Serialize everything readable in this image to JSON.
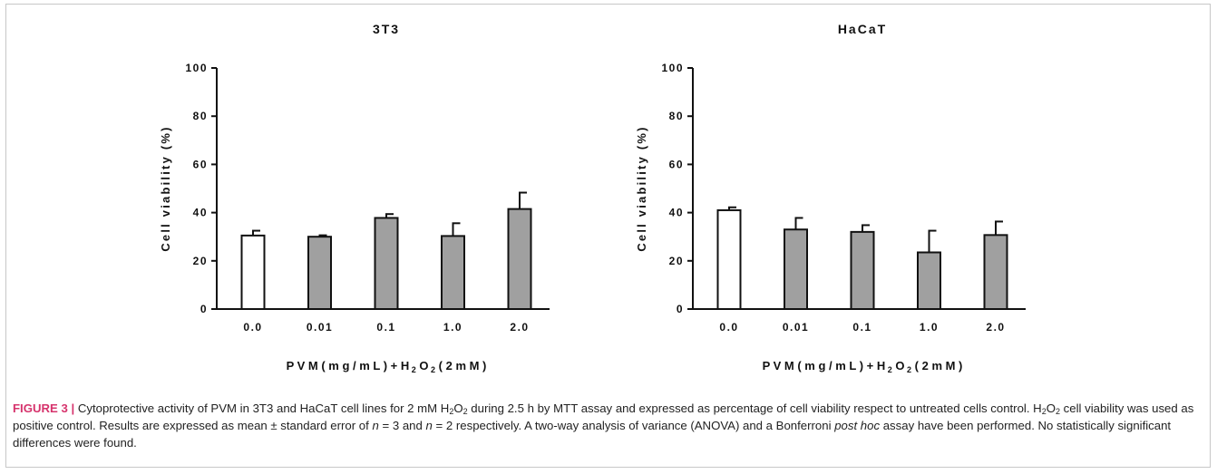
{
  "chart_data": [
    {
      "type": "bar",
      "title": "3T3",
      "xlabel": "PVM (mg/mL) + H2O2 (2 mM)",
      "ylabel": "Cell viability (%)",
      "categories": [
        "0.0",
        "0.01",
        "0.1",
        "1.0",
        "2.0"
      ],
      "values": [
        30.5,
        30.0,
        37.8,
        30.3,
        41.5
      ],
      "errors": [
        2.0,
        0.6,
        1.6,
        5.3,
        6.8
      ],
      "ylim": [
        0,
        100
      ],
      "yticks": [
        0,
        20,
        40,
        60,
        80,
        100
      ],
      "bar_colors": [
        "#ffffff",
        "#a0a0a0",
        "#a0a0a0",
        "#a0a0a0",
        "#a0a0a0"
      ],
      "grid": false
    },
    {
      "type": "bar",
      "title": "HaCaT",
      "xlabel": "PVM (mg/mL) + H2O2 (2 mM)",
      "ylabel": "Cell viability (%)",
      "categories": [
        "0.0",
        "0.01",
        "0.1",
        "1.0",
        "2.0"
      ],
      "values": [
        41.0,
        33.0,
        32.0,
        23.5,
        30.7
      ],
      "errors": [
        1.2,
        4.8,
        2.8,
        9.0,
        5.6
      ],
      "ylim": [
        0,
        100
      ],
      "yticks": [
        0,
        20,
        40,
        60,
        80,
        100
      ],
      "bar_colors": [
        "#ffffff",
        "#a0a0a0",
        "#a0a0a0",
        "#a0a0a0",
        "#a0a0a0"
      ],
      "grid": false
    }
  ],
  "caption": {
    "label": "FIGURE 3 |",
    "part1": " Cytoprotective activity of PVM in 3T3 and HaCaT cell lines for 2 mM H",
    "sub1": "2",
    "part2": "O",
    "sub2": "2",
    "part3": " during 2.5 h by MTT assay and expressed as percentage of cell viability respect to untreated cells control. H",
    "sub3": "2",
    "part4": "O",
    "sub4": "2",
    "part5": " cell viability was used as positive control. Results are expressed as mean ± standard error of ",
    "n1": "n",
    "part6": " = 3 and ",
    "n2": "n",
    "part7": " = 2 respectively. A two-way analysis of variance (ANOVA) and a Bonferroni ",
    "posthoc": "post hoc",
    "part8": " assay have been performed. No statistically significant differences were found."
  }
}
